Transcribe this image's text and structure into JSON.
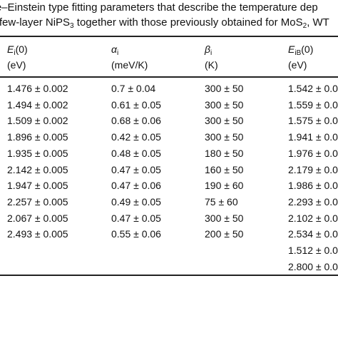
{
  "caption": {
    "line1": "ose–Einstein type fitting parameters that describe the temperature dep",
    "line2_a": "he few-layer NiPS",
    "line2_sub": "3",
    "line2_b": " together with those previously obtained for MoS",
    "line2_sub2": "2",
    "line2_c": ", WT"
  },
  "headers": [
    {
      "sym": "E",
      "sub": "i",
      "arg": "(0)",
      "unit": "(eV)"
    },
    {
      "sym": "α",
      "sub": "i",
      "arg": "",
      "unit": "(meV/K)"
    },
    {
      "sym": "β",
      "sub": "i",
      "arg": "",
      "unit": "(K)"
    },
    {
      "sym": "E",
      "sub": "iB",
      "arg": "(0)",
      "unit": "(eV)"
    }
  ],
  "rows": [
    [
      "1.476 ± 0.002",
      "0.7 ± 0.04",
      "300 ± 50",
      "1.542 ± 0.0"
    ],
    [
      "1.494 ± 0.002",
      "0.61 ± 0.05",
      "300 ± 50",
      "1.559 ± 0.0"
    ],
    [
      "1.509 ± 0.002",
      "0.68 ± 0.06",
      "300 ± 50",
      "1.575 ± 0.0"
    ],
    [
      "1.896 ± 0.005",
      "0.42 ± 0.05",
      "300 ± 50",
      "1.941 ± 0.0"
    ],
    [
      "1.935 ± 0.005",
      "0.48 ± 0.05",
      "180 ± 50",
      "1.976 ± 0.0"
    ],
    [
      "2.142 ± 0.005",
      "0.47 ± 0.05",
      "160 ± 50",
      "2.179 ± 0.0"
    ],
    [
      "1.947 ± 0.005",
      "0.47 ± 0.06",
      "190 ± 60",
      "1.986 ± 0.0"
    ],
    [
      "2.257 ± 0.005",
      "0.49 ± 0.05",
      "75 ± 60",
      "2.293 ± 0.0"
    ],
    [
      "2.067 ± 0.005",
      "0.47 ± 0.05",
      "300 ± 50",
      "2.102 ± 0.0"
    ],
    [
      "2.493 ± 0.005",
      "0.55 ± 0.06",
      "200 ± 50",
      "2.534 ± 0.0"
    ],
    [
      "",
      "",
      "",
      "1.512 ± 0.0"
    ],
    [
      "",
      "",
      "",
      "2.800 ± 0.0"
    ]
  ]
}
